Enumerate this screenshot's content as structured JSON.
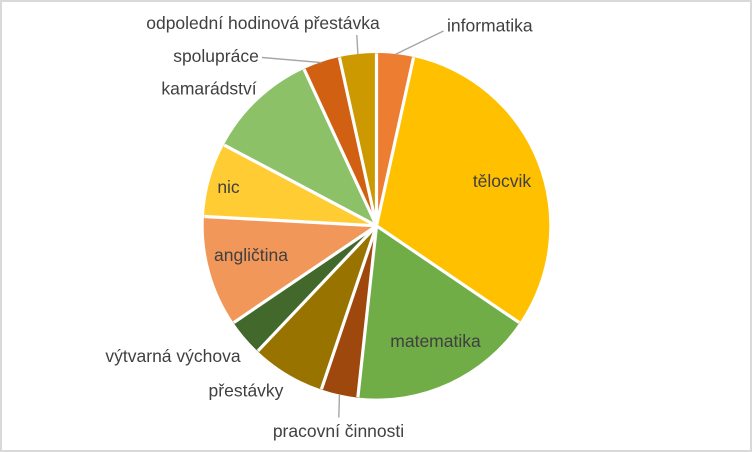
{
  "chart_data": {
    "type": "pie",
    "title": "",
    "legend": "none",
    "start_angle_deg": 0,
    "direction": "clockwise",
    "categories": [
      "informatika",
      "tělocvik",
      "matematika",
      "pracovní činnosti",
      "přestávky",
      "výtvarná výchova",
      "angličtina",
      "nic",
      "kamarádství",
      "spolupráce",
      "odpolední hodinová přestávka"
    ],
    "values": [
      1,
      9,
      5,
      1,
      2,
      1,
      3,
      2,
      3,
      1,
      1
    ],
    "colors": [
      "#ED7D31",
      "#FFC000",
      "#70AD47",
      "#9E480E",
      "#997300",
      "#43682B",
      "#F1975A",
      "#FFCD33",
      "#8CC168",
      "#D26012",
      "#CC9A00"
    ],
    "label_color": "#404040",
    "leader_line_color": "#A6A6A6",
    "slice_separator_color": "#FFFFFF",
    "frame_border_color": "#D9D9D9",
    "background_color": "#FFFFFF"
  }
}
